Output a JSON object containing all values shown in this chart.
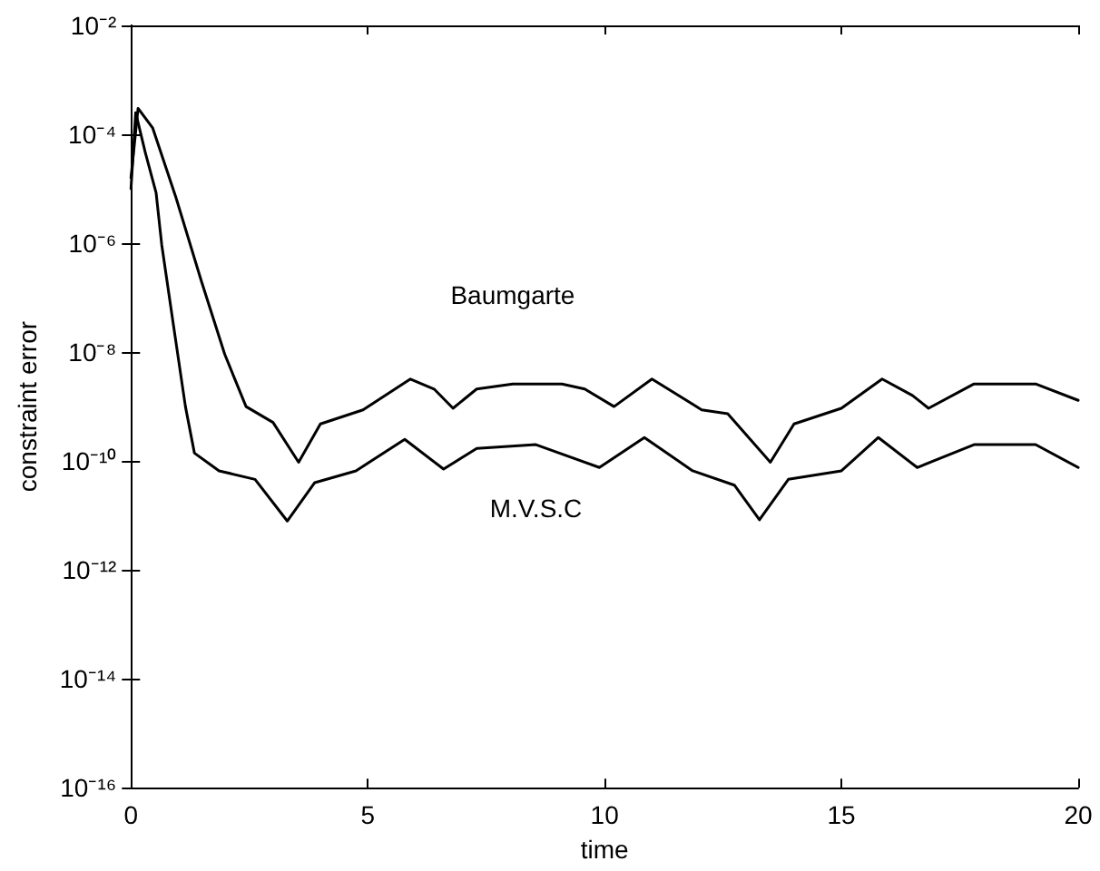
{
  "chart_data": {
    "type": "line",
    "xlabel": "time",
    "ylabel": "constraint error",
    "log": "y",
    "grid": false,
    "legend": false,
    "marker": "none",
    "line_style": "solid",
    "xlim": [
      0,
      20
    ],
    "xticks": [
      0,
      5,
      10,
      15,
      20
    ],
    "ylim": [
      1e-16,
      0.01
    ],
    "yticks": [
      {
        "value": 1e-16,
        "label": "10⁻¹⁶"
      },
      {
        "value": 1e-14,
        "label": "10⁻¹⁴"
      },
      {
        "value": 1e-12,
        "label": "10⁻¹²"
      },
      {
        "value": 1e-10,
        "label": "10⁻¹⁰"
      },
      {
        "value": 1e-08,
        "label": "10⁻⁸"
      },
      {
        "value": 1e-06,
        "label": "10⁻⁶"
      },
      {
        "value": 0.0001,
        "label": "10⁻⁴"
      },
      {
        "value": 0.01,
        "label": "10⁻²"
      }
    ],
    "series": [
      {
        "name": "Baumgarte",
        "color": "#000000",
        "x": [
          0,
          0.15,
          0.46,
          0.95,
          1.48,
          1.98,
          2.43,
          3.0,
          3.54,
          4.0,
          4.9,
          5.9,
          6.4,
          6.8,
          7.3,
          8.06,
          9.1,
          9.58,
          10.2,
          11.0,
          12.05,
          12.6,
          13.5,
          14.0,
          15.0,
          15.86,
          16.5,
          16.84,
          17.8,
          19.1,
          20.0
        ],
        "values": [
          1.6e-05,
          0.0003,
          0.00013,
          6.9e-06,
          2.1e-07,
          9.1e-09,
          1e-09,
          5.1e-10,
          9.5e-11,
          4.8e-10,
          8.7e-10,
          3.2e-09,
          2.1e-09,
          9.3e-10,
          2.1e-09,
          2.6e-09,
          2.6e-09,
          2.1e-09,
          1e-09,
          3.2e-09,
          8.7e-10,
          7.4e-10,
          9.5e-11,
          4.8e-10,
          9.3e-10,
          3.2e-09,
          1.6e-09,
          9.3e-10,
          2.6e-09,
          2.6e-09,
          1.3e-09
        ]
      },
      {
        "name": "M.V.S.C",
        "color": "#000000",
        "x": [
          0,
          0.1,
          0.3,
          0.53,
          0.65,
          0.9,
          1.15,
          1.34,
          1.86,
          2.62,
          3.3,
          3.88,
          4.75,
          5.78,
          6.6,
          7.3,
          8.55,
          9.89,
          10.84,
          11.86,
          12.74,
          13.27,
          13.88,
          15.0,
          15.78,
          16.6,
          17.8,
          19.1,
          20.0
        ],
        "values": [
          1e-05,
          0.00025,
          4.7e-05,
          8.5e-06,
          9.3e-07,
          3e-08,
          1e-09,
          1.4e-10,
          6.6e-11,
          4.6e-11,
          7.9e-12,
          4e-11,
          6.6e-11,
          2.5e-10,
          7.1e-11,
          1.7e-10,
          2e-10,
          7.6e-11,
          2.7e-10,
          6.6e-11,
          3.6e-11,
          8.3e-12,
          4.6e-11,
          6.6e-11,
          2.7e-10,
          7.6e-11,
          2e-10,
          2e-10,
          7.6e-11
        ]
      }
    ]
  }
}
